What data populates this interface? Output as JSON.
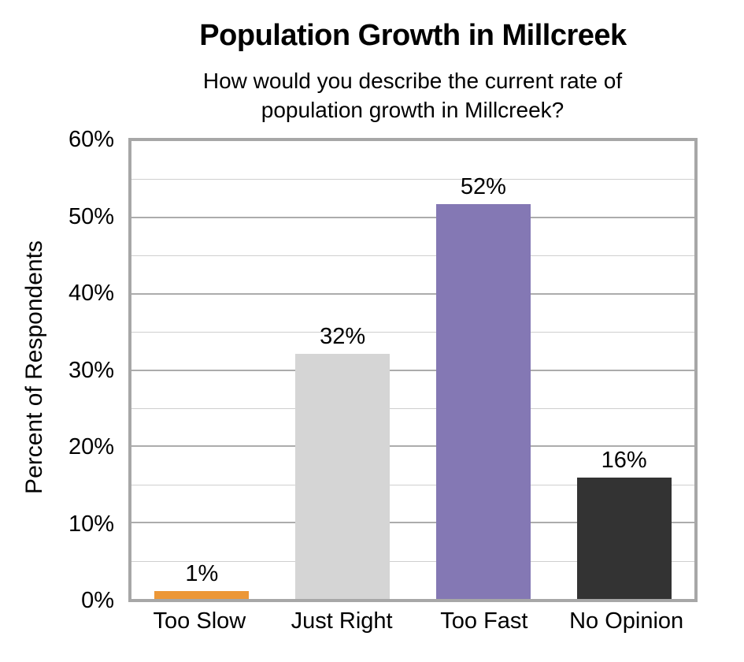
{
  "header": {
    "title": "Population Growth in Millcreek",
    "subtitle_lines": [
      "How would you describe the current rate of",
      "population growth in Millcreek?"
    ]
  },
  "y_axis": {
    "title": "Percent of Respondents",
    "tick_labels": [
      "0%",
      "10%",
      "20%",
      "30%",
      "40%",
      "50%",
      "60%"
    ]
  },
  "chart_data": {
    "type": "bar",
    "title": "Population Growth in Millcreek",
    "subtitle": "How would you describe the current rate of population growth in Millcreek?",
    "xlabel": "",
    "ylabel": "Percent of Respondents",
    "categories": [
      "Too Slow",
      "Just Right",
      "Too Fast",
      "No Opinion"
    ],
    "values": [
      1,
      32,
      52,
      16
    ],
    "value_labels": [
      "1%",
      "32%",
      "52%",
      "16%"
    ],
    "bar_render_heights_pct": [
      1.0,
      32.1,
      51.7,
      15.9
    ],
    "bar_colors": [
      "#EC9737",
      "#D5D5D5",
      "#8478B4",
      "#333333"
    ],
    "ylim": [
      0,
      60
    ],
    "ytick_step": 10,
    "gridline_step": 5,
    "grid": true,
    "legend": "none"
  },
  "style": {
    "plot_border_color": "#A7A7A7",
    "major_gridline_color": "#ACACAC",
    "minor_gridline_color": "#CFCFCF",
    "text_color": "#000000",
    "background": "#FFFFFF"
  }
}
